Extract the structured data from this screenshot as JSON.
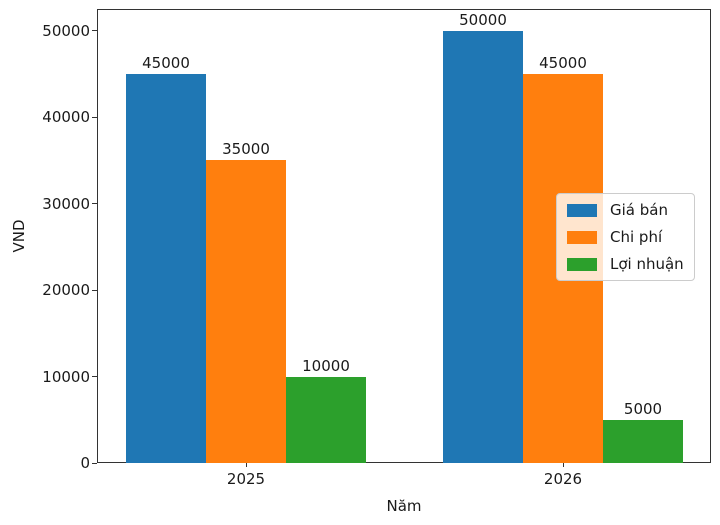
{
  "chart_data": {
    "type": "bar",
    "categories": [
      "2025",
      "2026"
    ],
    "series": [
      {
        "name": "Giá bán",
        "color": "#1f77b4",
        "values": [
          45000,
          50000
        ]
      },
      {
        "name": "Chi phí",
        "color": "#ff7f0e",
        "values": [
          35000,
          45000
        ]
      },
      {
        "name": "Lợi nhuận",
        "color": "#2ca02c",
        "values": [
          10000,
          5000
        ]
      }
    ],
    "bar_value_labels": [
      [
        "45000",
        "50000"
      ],
      [
        "35000",
        "45000"
      ],
      [
        "10000",
        "5000"
      ]
    ],
    "title": "",
    "xlabel": "Năm",
    "ylabel": "VND",
    "ylim": [
      0,
      52500
    ],
    "yticks": [
      0,
      10000,
      20000,
      30000,
      40000,
      50000
    ],
    "ytick_labels": [
      "0",
      "10000",
      "20000",
      "30000",
      "40000",
      "50000"
    ],
    "grid": false,
    "legend_position": "center-right",
    "axis_color": "#333333",
    "text_color": "#1a1a1a",
    "legend_border_color": "#cccccc",
    "background_color": "#ffffff"
  }
}
